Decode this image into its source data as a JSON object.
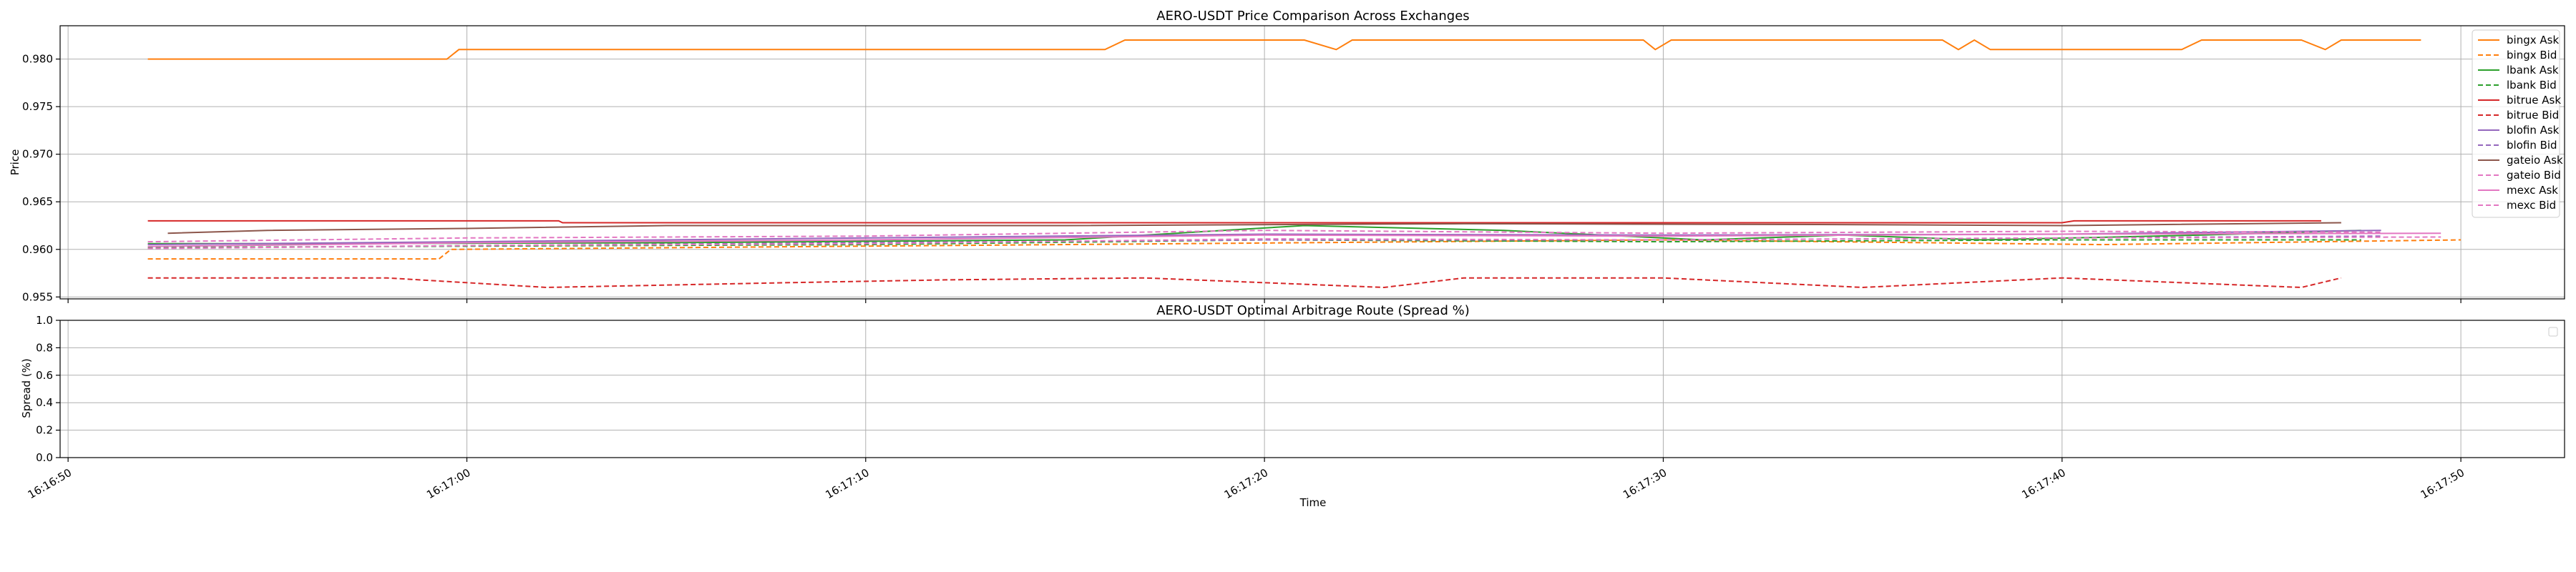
{
  "chart_data": [
    {
      "type": "line",
      "title": "AERO-USDT Price Comparison Across Exchanges",
      "xlabel": "",
      "ylabel": "Price",
      "ylim": [
        0.9548,
        0.9835
      ],
      "xlim": [
        "16:16:49.8",
        "16:17:52.6"
      ],
      "yticks": [
        "0.955",
        "0.960",
        "0.965",
        "0.970",
        "0.975",
        "0.980"
      ],
      "grid": true,
      "legend_position": "upper right",
      "series": [
        {
          "name": "bingx Ask",
          "color": "#ff7f0e",
          "dash": "solid",
          "points": [
            [
              "16:16:52.0",
              0.98
            ],
            [
              "16:16:59.5",
              0.98
            ],
            [
              "16:16:59.8",
              0.981
            ],
            [
              "16:17:16.0",
              0.981
            ],
            [
              "16:17:16.5",
              0.982
            ],
            [
              "16:17:21.0",
              0.982
            ],
            [
              "16:17:21.8",
              0.981
            ],
            [
              "16:17:22.2",
              0.982
            ],
            [
              "16:17:29.5",
              0.982
            ],
            [
              "16:17:29.8",
              0.981
            ],
            [
              "16:17:30.2",
              0.982
            ],
            [
              "16:17:37.0",
              0.982
            ],
            [
              "16:17:37.4",
              0.981
            ],
            [
              "16:17:37.8",
              0.982
            ],
            [
              "16:17:38.2",
              0.981
            ],
            [
              "16:17:43.0",
              0.981
            ],
            [
              "16:17:43.5",
              0.982
            ],
            [
              "16:17:46.0",
              0.982
            ],
            [
              "16:17:46.6",
              0.981
            ],
            [
              "16:17:47.0",
              0.982
            ],
            [
              "16:17:49.0",
              0.982
            ]
          ]
        },
        {
          "name": "bingx Bid",
          "color": "#ff7f0e",
          "dash": "dashed",
          "points": [
            [
              "16:16:52.0",
              0.959
            ],
            [
              "16:16:59.3",
              0.959
            ],
            [
              "16:16:59.6",
              0.96
            ],
            [
              "16:17:30.0",
              0.961
            ],
            [
              "16:17:41.0",
              0.9605
            ],
            [
              "16:17:50.0",
              0.961
            ]
          ]
        },
        {
          "name": "lbank Ask",
          "color": "#2ca02c",
          "dash": "solid",
          "points": [
            [
              "16:16:52.0",
              0.9606
            ],
            [
              "16:16:55.0",
              0.9606
            ],
            [
              "16:17:05.0",
              0.9607
            ],
            [
              "16:17:15.0",
              0.961
            ],
            [
              "16:17:21.0",
              0.9625
            ],
            [
              "16:17:26.0",
              0.962
            ],
            [
              "16:17:31.0",
              0.961
            ],
            [
              "16:17:34.5",
              0.9615
            ],
            [
              "16:17:38.0",
              0.961
            ],
            [
              "16:17:43.5",
              0.9615
            ],
            [
              "16:17:47.5",
              0.962
            ]
          ]
        },
        {
          "name": "lbank Bid",
          "color": "#2ca02c",
          "dash": "dashed",
          "points": [
            [
              "16:16:52.0",
              0.9602
            ],
            [
              "16:17:10.0",
              0.9605
            ],
            [
              "16:17:20.0",
              0.961
            ],
            [
              "16:17:30.0",
              0.9608
            ],
            [
              "16:17:40.0",
              0.961
            ],
            [
              "16:17:47.5",
              0.961
            ]
          ]
        },
        {
          "name": "bitrue Ask",
          "color": "#d62728",
          "dash": "solid",
          "points": [
            [
              "16:16:52.0",
              0.963
            ],
            [
              "16:17:02.3",
              0.963
            ],
            [
              "16:17:02.4",
              0.9628
            ],
            [
              "16:17:40.0",
              0.9628
            ],
            [
              "16:17:40.3",
              0.963
            ],
            [
              "16:17:46.5",
              0.963
            ]
          ]
        },
        {
          "name": "bitrue Bid",
          "color": "#d62728",
          "dash": "dashed",
          "points": [
            [
              "16:16:52.0",
              0.957
            ],
            [
              "16:16:58.0",
              0.957
            ],
            [
              "16:17:02.0",
              0.956
            ],
            [
              "16:17:08.0",
              0.9565
            ],
            [
              "16:17:12.0",
              0.9568
            ],
            [
              "16:17:17.0",
              0.957
            ],
            [
              "16:17:23.0",
              0.956
            ],
            [
              "16:17:25.0",
              0.957
            ],
            [
              "16:17:30.0",
              0.957
            ],
            [
              "16:17:35.0",
              0.956
            ],
            [
              "16:17:40.0",
              0.957
            ],
            [
              "16:17:46.0",
              0.956
            ],
            [
              "16:17:47.0",
              0.957
            ]
          ]
        },
        {
          "name": "blofin Ask",
          "color": "#9467bd",
          "dash": "solid",
          "points": [
            [
              "16:16:52.0",
              0.9605
            ],
            [
              "16:17:00.0",
              0.9608
            ],
            [
              "16:17:10.0",
              0.9612
            ],
            [
              "16:17:20.0",
              0.9616
            ],
            [
              "16:17:30.0",
              0.9615
            ],
            [
              "16:17:40.0",
              0.9616
            ],
            [
              "16:17:48.0",
              0.962
            ]
          ]
        },
        {
          "name": "blofin Bid",
          "color": "#9467bd",
          "dash": "dashed",
          "points": [
            [
              "16:16:52.0",
              0.9601
            ],
            [
              "16:17:00.0",
              0.9604
            ],
            [
              "16:17:10.0",
              0.9607
            ],
            [
              "16:17:20.0",
              0.961
            ],
            [
              "16:17:30.0",
              0.961
            ],
            [
              "16:17:40.0",
              0.9612
            ],
            [
              "16:17:48.0",
              0.9614
            ]
          ]
        },
        {
          "name": "gateio Ask",
          "color": "#8c564b",
          "dash": "solid",
          "points": [
            [
              "16:16:52.5",
              0.9617
            ],
            [
              "16:16:55.0",
              0.962
            ],
            [
              "16:17:00.0",
              0.9622
            ],
            [
              "16:17:05.0",
              0.9625
            ],
            [
              "16:17:15.0",
              0.9625
            ],
            [
              "16:17:25.0",
              0.9627
            ],
            [
              "16:17:35.0",
              0.9626
            ],
            [
              "16:17:40.0",
              0.9625
            ],
            [
              "16:17:47.0",
              0.9628
            ]
          ]
        },
        {
          "name": "gateio Bid",
          "color": "#e377c2",
          "dash": "dashed",
          "points": [
            [
              "16:16:52.0",
              0.9608
            ],
            [
              "16:17:00.0",
              0.9612
            ],
            [
              "16:17:10.0",
              0.9614
            ],
            [
              "16:17:20.0",
              0.962
            ],
            [
              "16:17:30.0",
              0.9617
            ],
            [
              "16:17:40.0",
              0.9619
            ],
            [
              "16:17:48.0",
              0.9618
            ]
          ]
        },
        {
          "name": "mexc Ask",
          "color": "#e377c2",
          "dash": "solid",
          "points": [
            [
              "16:16:52.0",
              0.9603
            ],
            [
              "16:17:00.0",
              0.9607
            ],
            [
              "16:17:10.0",
              0.961
            ],
            [
              "16:17:20.0",
              0.9615
            ],
            [
              "16:17:30.0",
              0.9614
            ],
            [
              "16:17:40.0",
              0.9616
            ],
            [
              "16:17:49.5",
              0.9617
            ]
          ]
        },
        {
          "name": "mexc Bid",
          "color": "#e377c2",
          "dash": "dashed",
          "points": [
            [
              "16:16:52.0",
              0.9601
            ],
            [
              "16:17:00.0",
              0.9604
            ],
            [
              "16:17:10.0",
              0.9606
            ],
            [
              "16:17:20.0",
              0.9611
            ],
            [
              "16:17:30.0",
              0.961
            ],
            [
              "16:17:40.0",
              0.9612
            ],
            [
              "16:17:49.5",
              0.9613
            ]
          ]
        }
      ]
    },
    {
      "type": "line",
      "title": "AERO-USDT Optimal Arbitrage Route (Spread %)",
      "xlabel": "Time",
      "ylabel": "Spread (%)",
      "ylim": [
        0.0,
        1.0
      ],
      "yticks": [
        "0.0",
        "0.2",
        "0.4",
        "0.6",
        "0.8",
        "1.0"
      ],
      "xticks": [
        "16:16:50",
        "16:17:00",
        "16:17:10",
        "16:17:20",
        "16:17:30",
        "16:17:40",
        "16:17:50"
      ],
      "grid": true,
      "legend_position": "upper right",
      "series": []
    }
  ]
}
